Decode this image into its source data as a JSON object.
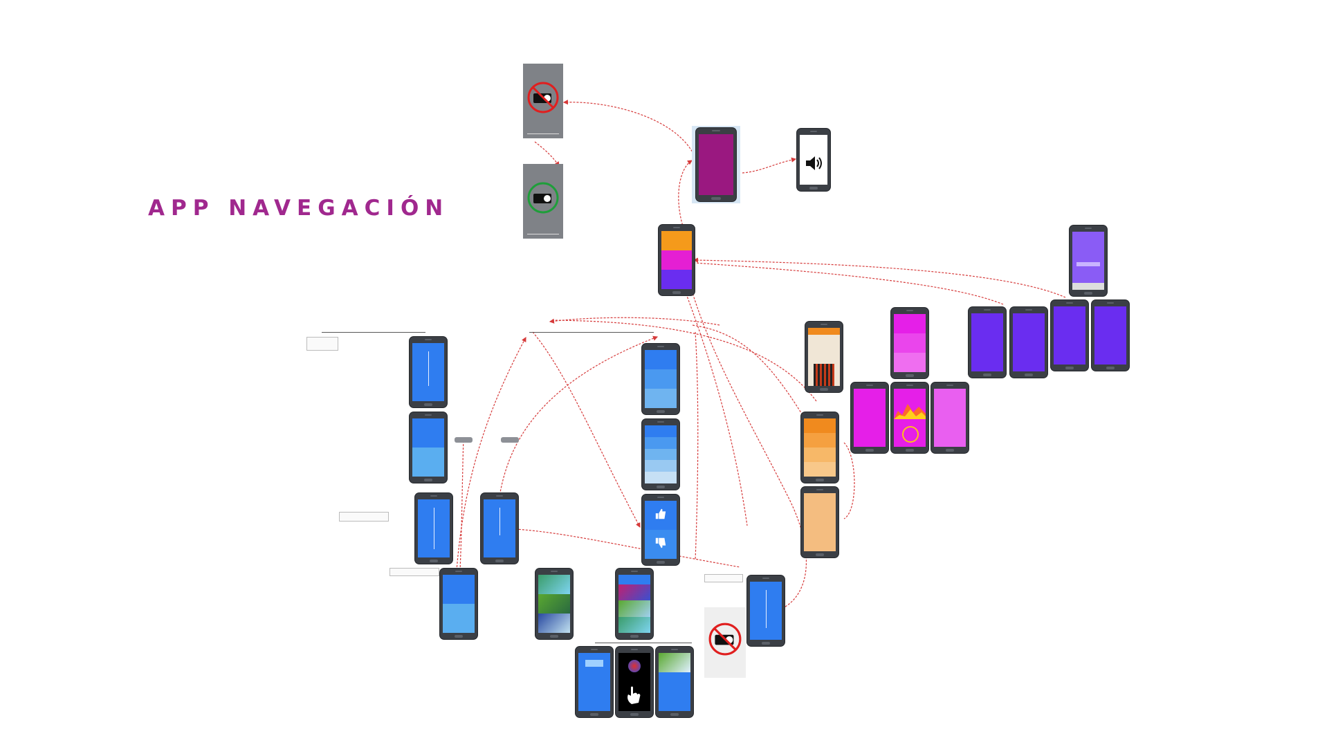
{
  "header": {
    "title": "APP NAVEGACIÓN"
  },
  "colors": {
    "brand_magenta": "#a0288e",
    "primary_blue": "#2f7df0",
    "light_blue": "#5aaef0",
    "purple": "#6a2df0",
    "magenta": "#e51fe8",
    "orange": "#f08a1e",
    "link_red": "#d63a3a"
  },
  "icons": {
    "no_projector": "no-projector-icon",
    "projector": "projector-icon",
    "speaker": "speaker-icon",
    "thumbs_up": "thumbs-up-icon",
    "thumbs_down": "thumbs-down-icon",
    "hand_gesture": "hand-gesture-icon"
  }
}
